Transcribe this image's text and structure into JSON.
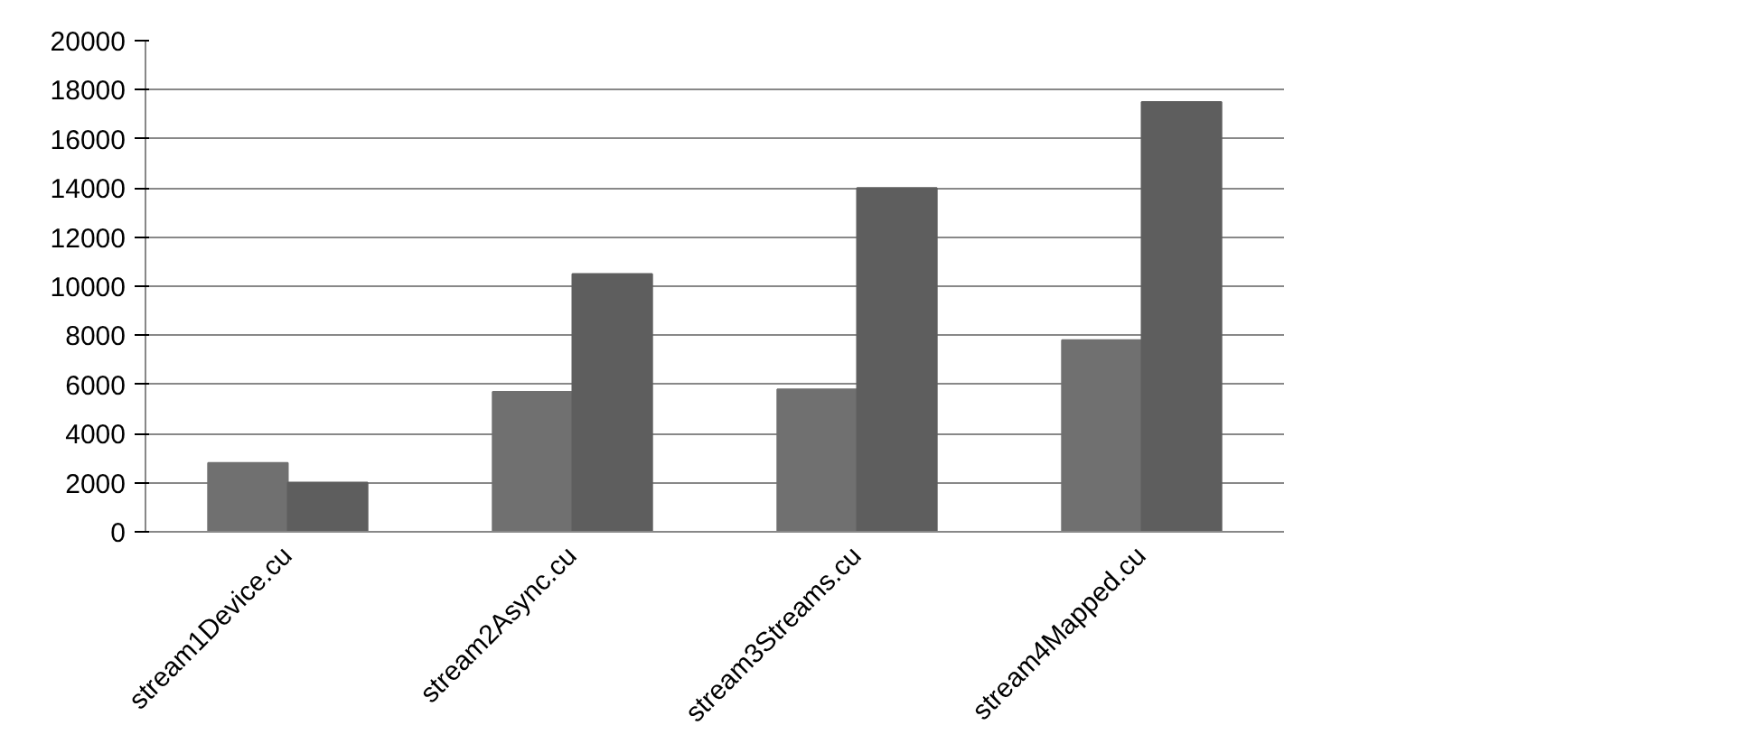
{
  "chart_data": {
    "type": "bar",
    "categories": [
      "stream1Device.cu",
      "stream2Async.cu",
      "stream3Streams.cu",
      "stream4Mapped.cu"
    ],
    "series": [
      {
        "color": "#707070",
        "values": [
          2800,
          5700,
          5800,
          7800
        ]
      },
      {
        "color": "#5e5e5e",
        "values": [
          2000,
          10500,
          14000,
          17500
        ]
      }
    ],
    "ylim": [
      0,
      20000
    ],
    "yticks": [
      0,
      2000,
      4000,
      6000,
      8000,
      10000,
      12000,
      14000,
      16000,
      18000,
      20000
    ],
    "grid": "y"
  }
}
